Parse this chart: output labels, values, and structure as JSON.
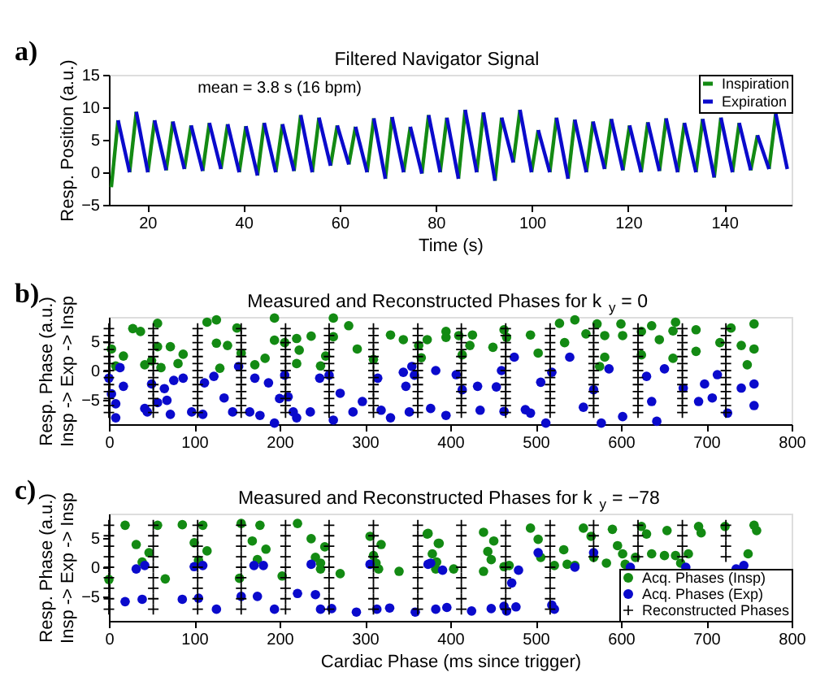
{
  "chart_data": [
    {
      "type": "line",
      "title": "Filtered Navigator Signal",
      "xlabel": "Time (s)",
      "ylabel": "Resp. Position (a.u.)",
      "xlim": [
        12,
        154
      ],
      "xticks": [
        20,
        40,
        60,
        80,
        100,
        120,
        140
      ],
      "ylim": [
        -5,
        15
      ],
      "yticks": [
        -5,
        0,
        5,
        10,
        15
      ],
      "legend": "top right",
      "grid": false,
      "line_style": "solid",
      "annotations": [
        "a)",
        "mean = 3.8 s (16 bpm)"
      ],
      "series": [
        {
          "name": "Inspiration",
          "color": "#138a13",
          "x": [
            12.5,
            13.9,
            null,
            16.3,
            17.7,
            null,
            20.1,
            21.5,
            null,
            23.9,
            25.3,
            null,
            27.7,
            29.1,
            null,
            31.5,
            32.9,
            null,
            35.3,
            36.7,
            null,
            39.1,
            40.5,
            null,
            42.9,
            44.3,
            null,
            46.7,
            48.1,
            null,
            50.5,
            51.9,
            null,
            54.3,
            55.7,
            null,
            58.1,
            59.5,
            null,
            61.9,
            63.3,
            null,
            65.7,
            67.1,
            null,
            69.5,
            70.9,
            null,
            73.3,
            74.7,
            null,
            77.1,
            78.5,
            null,
            80.9,
            82.3,
            null,
            84.7,
            86.1,
            null,
            88.5,
            89.9,
            null,
            92.3,
            93.7,
            null,
            96.1,
            97.5,
            null,
            99.9,
            101.3,
            null,
            103.7,
            105.1,
            null,
            107.5,
            108.9,
            null,
            111.3,
            112.7,
            null,
            115.1,
            116.5,
            null,
            118.9,
            120.3,
            null,
            122.7,
            124.1,
            null,
            126.5,
            127.9,
            null,
            130.3,
            131.7,
            null,
            134.1,
            135.5,
            null,
            137.9,
            139.3,
            null,
            141.7,
            143.1,
            null,
            145.5,
            146.9,
            null,
            149.3,
            150.7
          ],
          "values": [
            -2.3,
            8,
            null,
            0,
            9.3,
            null,
            0,
            8,
            null,
            0.3,
            7.8,
            null,
            0.5,
            7.2,
            null,
            0.2,
            7.6,
            null,
            0.5,
            7.4,
            null,
            0,
            7.1,
            null,
            -0.5,
            7.6,
            null,
            0,
            7.4,
            null,
            0.2,
            8.8,
            null,
            0,
            8.4,
            null,
            1,
            7.2,
            null,
            1.2,
            7,
            null,
            0,
            8.3,
            null,
            -1,
            8.5,
            null,
            0,
            7,
            null,
            -0.2,
            8.8,
            null,
            0,
            8.4,
            null,
            -1,
            9.6,
            null,
            0,
            9.2,
            null,
            -1.3,
            8.4,
            null,
            1.5,
            9.6,
            null,
            0,
            6.5,
            null,
            0,
            8.4,
            null,
            -1,
            8.1,
            null,
            0,
            7.8,
            null,
            0.5,
            8.2,
            null,
            0.3,
            7.2,
            null,
            0,
            7.7,
            null,
            0.2,
            8.3,
            null,
            0,
            7.6,
            null,
            0,
            8.2,
            null,
            -0.8,
            8.4,
            null,
            0,
            7.6,
            null,
            0.3,
            5.7,
            null,
            0.5,
            9
          ]
        },
        {
          "name": "Expiration",
          "color": "#0a0acc",
          "x": [
            13.9,
            16.3,
            null,
            17.7,
            20.1,
            null,
            21.5,
            23.9,
            null,
            25.3,
            27.7,
            null,
            29.1,
            31.5,
            null,
            32.9,
            35.3,
            null,
            36.7,
            39.1,
            null,
            40.5,
            42.9,
            null,
            44.3,
            46.7,
            null,
            48.1,
            50.5,
            null,
            51.9,
            54.3,
            null,
            55.7,
            58.1,
            null,
            59.5,
            61.9,
            null,
            63.3,
            65.7,
            null,
            67.1,
            69.5,
            null,
            70.9,
            73.3,
            null,
            74.7,
            77.1,
            null,
            78.5,
            80.9,
            null,
            82.3,
            84.7,
            null,
            86.1,
            88.5,
            null,
            89.9,
            92.3,
            null,
            93.7,
            96.1,
            null,
            97.5,
            99.9,
            null,
            101.3,
            103.7,
            null,
            105.1,
            107.5,
            null,
            108.9,
            111.3,
            null,
            112.7,
            115.1,
            null,
            116.5,
            118.9,
            null,
            120.3,
            122.7,
            null,
            124.1,
            126.5,
            null,
            127.9,
            130.3,
            null,
            131.7,
            134.1,
            null,
            135.5,
            137.9,
            null,
            139.3,
            141.7,
            null,
            143.1,
            145.5,
            null,
            146.9,
            149.3,
            null,
            150.7,
            153.1
          ],
          "values": [
            8,
            0,
            null,
            9.3,
            0,
            null,
            8,
            0.3,
            null,
            7.8,
            0.5,
            null,
            7.2,
            0.2,
            null,
            7.6,
            0.5,
            null,
            7.4,
            0,
            null,
            7.1,
            -0.5,
            null,
            7.6,
            0,
            null,
            7.4,
            0.2,
            null,
            8.8,
            0,
            null,
            8.4,
            1,
            null,
            7.2,
            1.2,
            null,
            7,
            0,
            null,
            8.3,
            -1,
            null,
            8.5,
            0,
            null,
            7,
            -0.2,
            null,
            8.8,
            0,
            null,
            8.4,
            -1,
            null,
            9.6,
            0,
            null,
            9.2,
            -1.3,
            null,
            8.4,
            1.5,
            null,
            9.6,
            0,
            null,
            6.5,
            0,
            null,
            8.4,
            -1,
            null,
            8.1,
            0,
            null,
            7.8,
            0.5,
            null,
            8.2,
            0.3,
            null,
            7.2,
            0,
            null,
            7.7,
            0.2,
            null,
            8.3,
            0,
            null,
            7.6,
            0,
            null,
            8.2,
            -0.8,
            null,
            8.4,
            0,
            null,
            7.6,
            0.3,
            null,
            5.7,
            0.5,
            null,
            9,
            0.5
          ]
        }
      ]
    },
    {
      "type": "scatter",
      "title": "Measured and Reconstructed Phases for k$_{y}$ = 0",
      "ylabel": "Resp. Phase (a.u.)\nInsp -> Exp -> Insp",
      "xlim": [
        0,
        800
      ],
      "xticks": [
        0,
        100,
        200,
        300,
        400,
        500,
        600,
        700,
        800
      ],
      "ylim": [
        -9.2,
        9.2
      ],
      "yticks": [
        -5,
        0,
        5
      ],
      "grid": false,
      "legend": false,
      "annotations": [
        "b)"
      ],
      "series": [
        {
          "color": "#138a13",
          "marker": "circle",
          "x": [
            3,
            8,
            17,
            28,
            37,
            42,
            50,
            57,
            57,
            61,
            72,
            81,
            87,
            115,
            126,
            126,
            130,
            139,
            150,
            155,
            171,
            183,
            194,
            194,
            206,
            220,
            223,
            220,
            237,
            248,
            254,
            263,
            263,
            281,
            291,
            310,
            330,
            345,
            366,
            363,
            373,
            395,
            395,
            410,
            414,
            426,
            423,
            450,
            463,
            466,
            494,
            503,
            528,
            534,
            546,
            559,
            572,
            581,
            581,
            600,
            602,
            624,
            624,
            636,
            645,
            664,
            661,
            688,
            688,
            716,
            729,
            741,
            748,
            756,
            756,
            575,
            661
          ],
          "values": [
            3.7,
            0.8,
            2.5,
            7.2,
            6.7,
            1,
            1.7,
            8.1,
            4.1,
            0.5,
            4.1,
            1.2,
            2.8,
            8.3,
            8.7,
            4.7,
            0.4,
            4.3,
            7.3,
            3,
            1,
            2.1,
            9,
            5.2,
            4.8,
            5.5,
            3.5,
            1.2,
            5.9,
            0.8,
            2.5,
            9,
            5.8,
            7.7,
            3.7,
            1.9,
            6.1,
            5.3,
            2.2,
            4.3,
            5.3,
            6.7,
            5.7,
            6,
            2.7,
            6.1,
            4.3,
            4,
            7,
            5.7,
            6.1,
            3,
            8.1,
            4.8,
            8.7,
            6.3,
            8,
            6,
            2.3,
            8,
            6,
            6.7,
            2.7,
            7.7,
            5.3,
            8.3,
            6.8,
            7,
            3.3,
            4.8,
            7.3,
            4.3,
            1,
            8,
            3.7,
            0.7,
            2.1
          ]
        },
        {
          "color": "#0a0acc",
          "marker": "circle",
          "x": [
            0,
            3,
            8,
            13,
            8,
            17,
            42,
            45,
            50,
            57,
            68,
            72,
            65,
            76,
            87,
            97,
            110,
            112,
            123,
            135,
            145,
            152,
            165,
            171,
            177,
            187,
            194,
            200,
            206,
            210,
            216,
            220,
            236,
            247,
            258,
            263,
            271,
            286,
            297,
            315,
            319,
            330,
            345,
            348,
            355,
            358,
            352,
            377,
            383,
            395,
            407,
            414,
            432,
            435,
            460,
            454,
            463,
            475,
            488,
            494,
            506,
            512,
            519,
            540,
            556,
            568,
            577,
            586,
            602,
            630,
            636,
            642,
            651,
            673,
            691,
            698,
            707,
            713,
            725,
            741,
            756,
            756
          ],
          "values": [
            -1.3,
            -4,
            -5.7,
            0.5,
            -8.1,
            -2.7,
            -6.5,
            -7.1,
            -2.3,
            -5.5,
            -5.1,
            -7.5,
            -3.1,
            -1.7,
            -1.3,
            -7.1,
            -7.5,
            -2.1,
            -1,
            -4.7,
            -7.1,
            0.7,
            -7.1,
            -1.3,
            -7.7,
            -2.1,
            -9,
            -4.8,
            -0.8,
            -4.5,
            -7.1,
            -8.1,
            -7.1,
            -1.3,
            -0.8,
            -8.5,
            -3.9,
            -7.1,
            -5.3,
            -1.3,
            -6.8,
            -8.1,
            -0.3,
            -2.7,
            0.7,
            -0.8,
            -7.1,
            -6.5,
            0,
            -7.7,
            -0.7,
            -3.3,
            -2.7,
            -6.8,
            0,
            -2.8,
            -7,
            2.3,
            -6.7,
            -7.3,
            -2,
            -9,
            -0.3,
            2.3,
            -6.3,
            -3.3,
            -9,
            0.3,
            -7.9,
            -1,
            -5.3,
            -8.7,
            0.3,
            -3,
            -5.3,
            -2.3,
            -4.7,
            -0.7,
            -7.3,
            -3,
            -6,
            -2.3
          ]
        },
        {
          "color": "#000000",
          "marker": "cross",
          "x": [
            0,
            0,
            0,
            0,
            0,
            0,
            0,
            0,
            0,
            0,
            0,
            0,
            0,
            52,
            52,
            52,
            52,
            52,
            52,
            52,
            52,
            52,
            52,
            52,
            52,
            52,
            104,
            104,
            104,
            104,
            104,
            104,
            104,
            104,
            104,
            104,
            104,
            104,
            104,
            155,
            155,
            155,
            155,
            155,
            155,
            155,
            155,
            155,
            155,
            155,
            155,
            155,
            207,
            207,
            207,
            207,
            207,
            207,
            207,
            207,
            207,
            207,
            207,
            207,
            207,
            258,
            258,
            258,
            258,
            258,
            258,
            258,
            258,
            258,
            258,
            258,
            258,
            258,
            310,
            310,
            310,
            310,
            310,
            310,
            310,
            310,
            310,
            310,
            310,
            310,
            310,
            362,
            362,
            362,
            362,
            362,
            362,
            362,
            362,
            362,
            362,
            362,
            362,
            362,
            413,
            413,
            413,
            413,
            413,
            413,
            413,
            413,
            413,
            413,
            413,
            413,
            413,
            465,
            465,
            465,
            465,
            465,
            465,
            465,
            465,
            465,
            465,
            465,
            465,
            465,
            517,
            517,
            517,
            517,
            517,
            517,
            517,
            517,
            517,
            517,
            517,
            517,
            517,
            568,
            568,
            568,
            568,
            568,
            568,
            568,
            568,
            568,
            568,
            568,
            568,
            568,
            620,
            620,
            620,
            620,
            620,
            620,
            620,
            620,
            620,
            620,
            620,
            620,
            620,
            672,
            672,
            672,
            672,
            672,
            672,
            672,
            672,
            672,
            672,
            672,
            672,
            672,
            723,
            723,
            723,
            723,
            723,
            723,
            723,
            723,
            723,
            723,
            723,
            723,
            723
          ],
          "values": [
            7.2,
            6,
            4.8,
            3.6,
            2.4,
            1.2,
            0,
            -1.2,
            -2.4,
            -3.6,
            -4.8,
            -6,
            -7.2,
            7.2,
            6,
            4.8,
            3.6,
            2.4,
            1.2,
            0,
            -1.2,
            -2.4,
            -3.6,
            -4.8,
            -6,
            -7.2,
            7.2,
            6,
            4.8,
            3.6,
            2.4,
            1.2,
            0,
            -1.2,
            -2.4,
            -3.6,
            -4.8,
            -6,
            -7.2,
            7.2,
            6,
            4.8,
            3.6,
            2.4,
            1.2,
            0,
            -1.2,
            -2.4,
            -3.6,
            -4.8,
            -6,
            -7.2,
            7.2,
            6,
            4.8,
            3.6,
            2.4,
            1.2,
            0,
            -1.2,
            -2.4,
            -3.6,
            -4.8,
            -6,
            -7.2,
            7.2,
            6,
            4.8,
            3.6,
            2.4,
            1.2,
            0,
            -1.2,
            -2.4,
            -3.6,
            -4.8,
            -6,
            -7.2,
            7.2,
            6,
            4.8,
            3.6,
            2.4,
            1.2,
            0,
            -1.2,
            -2.4,
            -3.6,
            -4.8,
            -6,
            -7.2,
            7.2,
            6,
            4.8,
            3.6,
            2.4,
            1.2,
            0,
            -1.2,
            -2.4,
            -3.6,
            -4.8,
            -6,
            -7.2,
            7.2,
            6,
            4.8,
            3.6,
            2.4,
            1.2,
            0,
            -1.2,
            -2.4,
            -3.6,
            -4.8,
            -6,
            -7.2,
            7.2,
            6,
            4.8,
            3.6,
            2.4,
            1.2,
            0,
            -1.2,
            -2.4,
            -3.6,
            -4.8,
            -6,
            -7.2,
            7.2,
            6,
            4.8,
            3.6,
            2.4,
            1.2,
            0,
            -1.2,
            -2.4,
            -3.6,
            -4.8,
            -6,
            -7.2,
            7.2,
            6,
            4.8,
            3.6,
            2.4,
            1.2,
            0,
            -1.2,
            -2.4,
            -3.6,
            -4.8,
            -6,
            -7.2,
            7.2,
            6,
            4.8,
            3.6,
            2.4,
            1.2,
            0,
            -1.2,
            -2.4,
            -3.6,
            -4.8,
            -6,
            -7.2,
            7.2,
            6,
            4.8,
            3.6,
            2.4,
            1.2,
            0,
            -1.2,
            -2.4,
            -3.6,
            -4.8,
            -6,
            -7.2,
            7.2,
            6,
            4.8,
            3.6,
            2.4,
            1.2,
            0,
            -1.2,
            -2.4,
            -3.6,
            -4.8,
            -6,
            -7.2
          ]
        }
      ]
    },
    {
      "type": "scatter",
      "title": "Measured and Reconstructed Phases for k$_{y}$ = −78",
      "xlabel": "Cardiac Phase (ms since trigger)",
      "ylabel": "Resp. Phase (a.u.)\nInsp -> Exp -> Insp",
      "xlim": [
        0,
        800
      ],
      "xticks": [
        0,
        100,
        200,
        300,
        400,
        500,
        600,
        700,
        800
      ],
      "ylim": [
        -9.2,
        9.2
      ],
      "yticks": [
        -5,
        0,
        5
      ],
      "grid": false,
      "legend": "bottom right",
      "annotations": [
        "c)"
      ],
      "series": [
        {
          "name": "Acq. Phases (Insp)",
          "color": "#138a13",
          "marker": "circle",
          "x": [
            0,
            19,
            32,
            39,
            47,
            57,
            66,
            86,
            100,
            105,
            110,
            115,
            153,
            155,
            168,
            174,
            177,
            184,
            203,
            221,
            237,
            242,
            248,
            248,
            253,
            271,
            306,
            310,
            313,
            316,
            319,
            340,
            374,
            384,
            387,
            373,
            386,
            379,
            383,
            404,
            439,
            451,
            444,
            448,
            439,
            463,
            469,
            494,
            503,
            506,
            533,
            522,
            537,
            546,
            556,
            565,
            568,
            590,
            583,
            596,
            602,
            605,
            624,
            630,
            617,
            636,
            651,
            654,
            664,
            670,
            679,
            691,
            694,
            722,
            749,
            756,
            759
          ],
          "values": [
            -2.1,
            7.2,
            3.9,
            0.9,
            2.5,
            7.2,
            -2,
            7.3,
            4.2,
            1.2,
            7.2,
            2.8,
            -1.9,
            7.5,
            4.5,
            1.3,
            7.2,
            3.1,
            -1.5,
            7.5,
            4.9,
            1.7,
            -0.3,
            0.7,
            3.5,
            -1.1,
            5.3,
            2,
            0.7,
            -0.3,
            3.9,
            -0.7,
            5.8,
            0.9,
            4.1,
            5.7,
            4.1,
            2.3,
            -0.3,
            -0.3,
            6,
            4.5,
            2.7,
            1.3,
            -0.7,
            0.1,
            0.3,
            6.7,
            4.8,
            1.7,
            3,
            0.3,
            0.5,
            0.3,
            6.7,
            5.3,
            1.7,
            6.5,
            0.7,
            3.7,
            2.3,
            0.5,
            7,
            5.7,
            1.7,
            2.3,
            2,
            6.3,
            2,
            0.7,
            2.3,
            7,
            5.9,
            7,
            2.3,
            7.2,
            6.3
          ]
        },
        {
          "name": "Acq. Phases (Exp)",
          "color": "#0a0acc",
          "marker": "circle",
          "x": [
            19,
            32,
            39,
            42,
            86,
            100,
            105,
            110,
            126,
            155,
            174,
            170,
            181,
            194,
            221,
            237,
            242,
            248,
            261,
            290,
            306,
            314,
            329,
            359,
            383,
            374,
            377,
            391,
            396,
            425,
            448,
            463,
            466,
            477,
            480,
            472,
            503,
            519,
            522,
            546,
            568,
            611,
            676,
            735,
            744
          ],
          "values": [
            -5.9,
            -0.3,
            -5.5,
            0.3,
            -5.5,
            0.1,
            -5.3,
            0.3,
            -7.2,
            -5,
            -5,
            0.3,
            0.3,
            -7.2,
            -4.5,
            0.5,
            -4.7,
            -7.2,
            -7.1,
            -7.7,
            0.5,
            -7.2,
            -7,
            -7.7,
            -7.2,
            0.5,
            0.7,
            -0.5,
            -6.9,
            -7.5,
            -7.1,
            -6.7,
            -7.5,
            -6.8,
            -0.5,
            -2.7,
            2.5,
            -6.5,
            -7.2,
            0,
            2.5,
            0,
            0,
            -0.3,
            0.3
          ]
        },
        {
          "name": "Reconstructed Phases",
          "color": "#000000",
          "marker": "cross",
          "x": [
            0,
            0,
            0,
            0,
            0,
            0,
            0,
            0,
            0,
            52,
            52,
            52,
            52,
            52,
            52,
            52,
            52,
            52,
            104,
            104,
            104,
            104,
            104,
            104,
            104,
            104,
            104,
            155,
            155,
            155,
            155,
            155,
            155,
            155,
            155,
            155,
            207,
            207,
            207,
            207,
            207,
            207,
            207,
            207,
            207,
            258,
            258,
            258,
            258,
            258,
            258,
            258,
            258,
            258,
            310,
            310,
            310,
            310,
            310,
            310,
            310,
            310,
            310,
            362,
            362,
            362,
            362,
            362,
            362,
            362,
            362,
            362,
            413,
            413,
            413,
            413,
            413,
            413,
            413,
            413,
            413,
            465,
            465,
            465,
            465,
            465,
            465,
            465,
            465,
            465,
            517,
            517,
            517,
            517,
            517,
            517,
            517,
            517,
            517,
            568,
            568,
            568,
            568,
            null,
            null,
            null,
            null,
            null,
            620,
            620,
            620,
            620,
            null,
            null,
            null,
            null,
            null,
            672,
            672,
            672,
            672,
            null,
            null,
            null,
            null,
            null,
            723,
            723,
            723,
            723,
            null,
            null,
            null,
            null,
            null
          ],
          "values": [
            7.2,
            5.4,
            3.6,
            1.8,
            0,
            -1.8,
            -3.6,
            -5.4,
            -7.2,
            7.2,
            5.4,
            3.6,
            1.8,
            0,
            -1.8,
            -3.6,
            -5.4,
            -7.2,
            7.2,
            5.4,
            3.6,
            1.8,
            0,
            -1.8,
            -3.6,
            -5.4,
            -7.2,
            7.2,
            5.4,
            3.6,
            1.8,
            0,
            -1.8,
            -3.6,
            -5.4,
            -7.2,
            7.2,
            5.4,
            3.6,
            1.8,
            0,
            -1.8,
            -3.6,
            -5.4,
            -7.2,
            7.2,
            5.4,
            3.6,
            1.8,
            0,
            -1.8,
            -3.6,
            -5.4,
            -7.2,
            7.2,
            5.4,
            3.6,
            1.8,
            0,
            -1.8,
            -3.6,
            -5.4,
            -7.2,
            7.2,
            5.4,
            3.6,
            1.8,
            0,
            -1.8,
            -3.6,
            -5.4,
            -7.2,
            7.2,
            5.4,
            3.6,
            1.8,
            0,
            -1.8,
            -3.6,
            -5.4,
            -7.2,
            7.2,
            5.4,
            3.6,
            1.8,
            0,
            -1.8,
            -3.6,
            -5.4,
            -7.2,
            7.2,
            5.4,
            3.6,
            1.8,
            0,
            -1.8,
            -3.6,
            -5.4,
            -7.2,
            7.2,
            5.4,
            3.6,
            1.8,
            null,
            null,
            null,
            null,
            null,
            7.2,
            5.4,
            3.6,
            1.8,
            null,
            null,
            null,
            null,
            null,
            7.2,
            5.4,
            3.6,
            1.8,
            null,
            null,
            null,
            null,
            null,
            7.2,
            5.4,
            3.6,
            1.8,
            null,
            null,
            null,
            null,
            null
          ]
        }
      ]
    }
  ]
}
